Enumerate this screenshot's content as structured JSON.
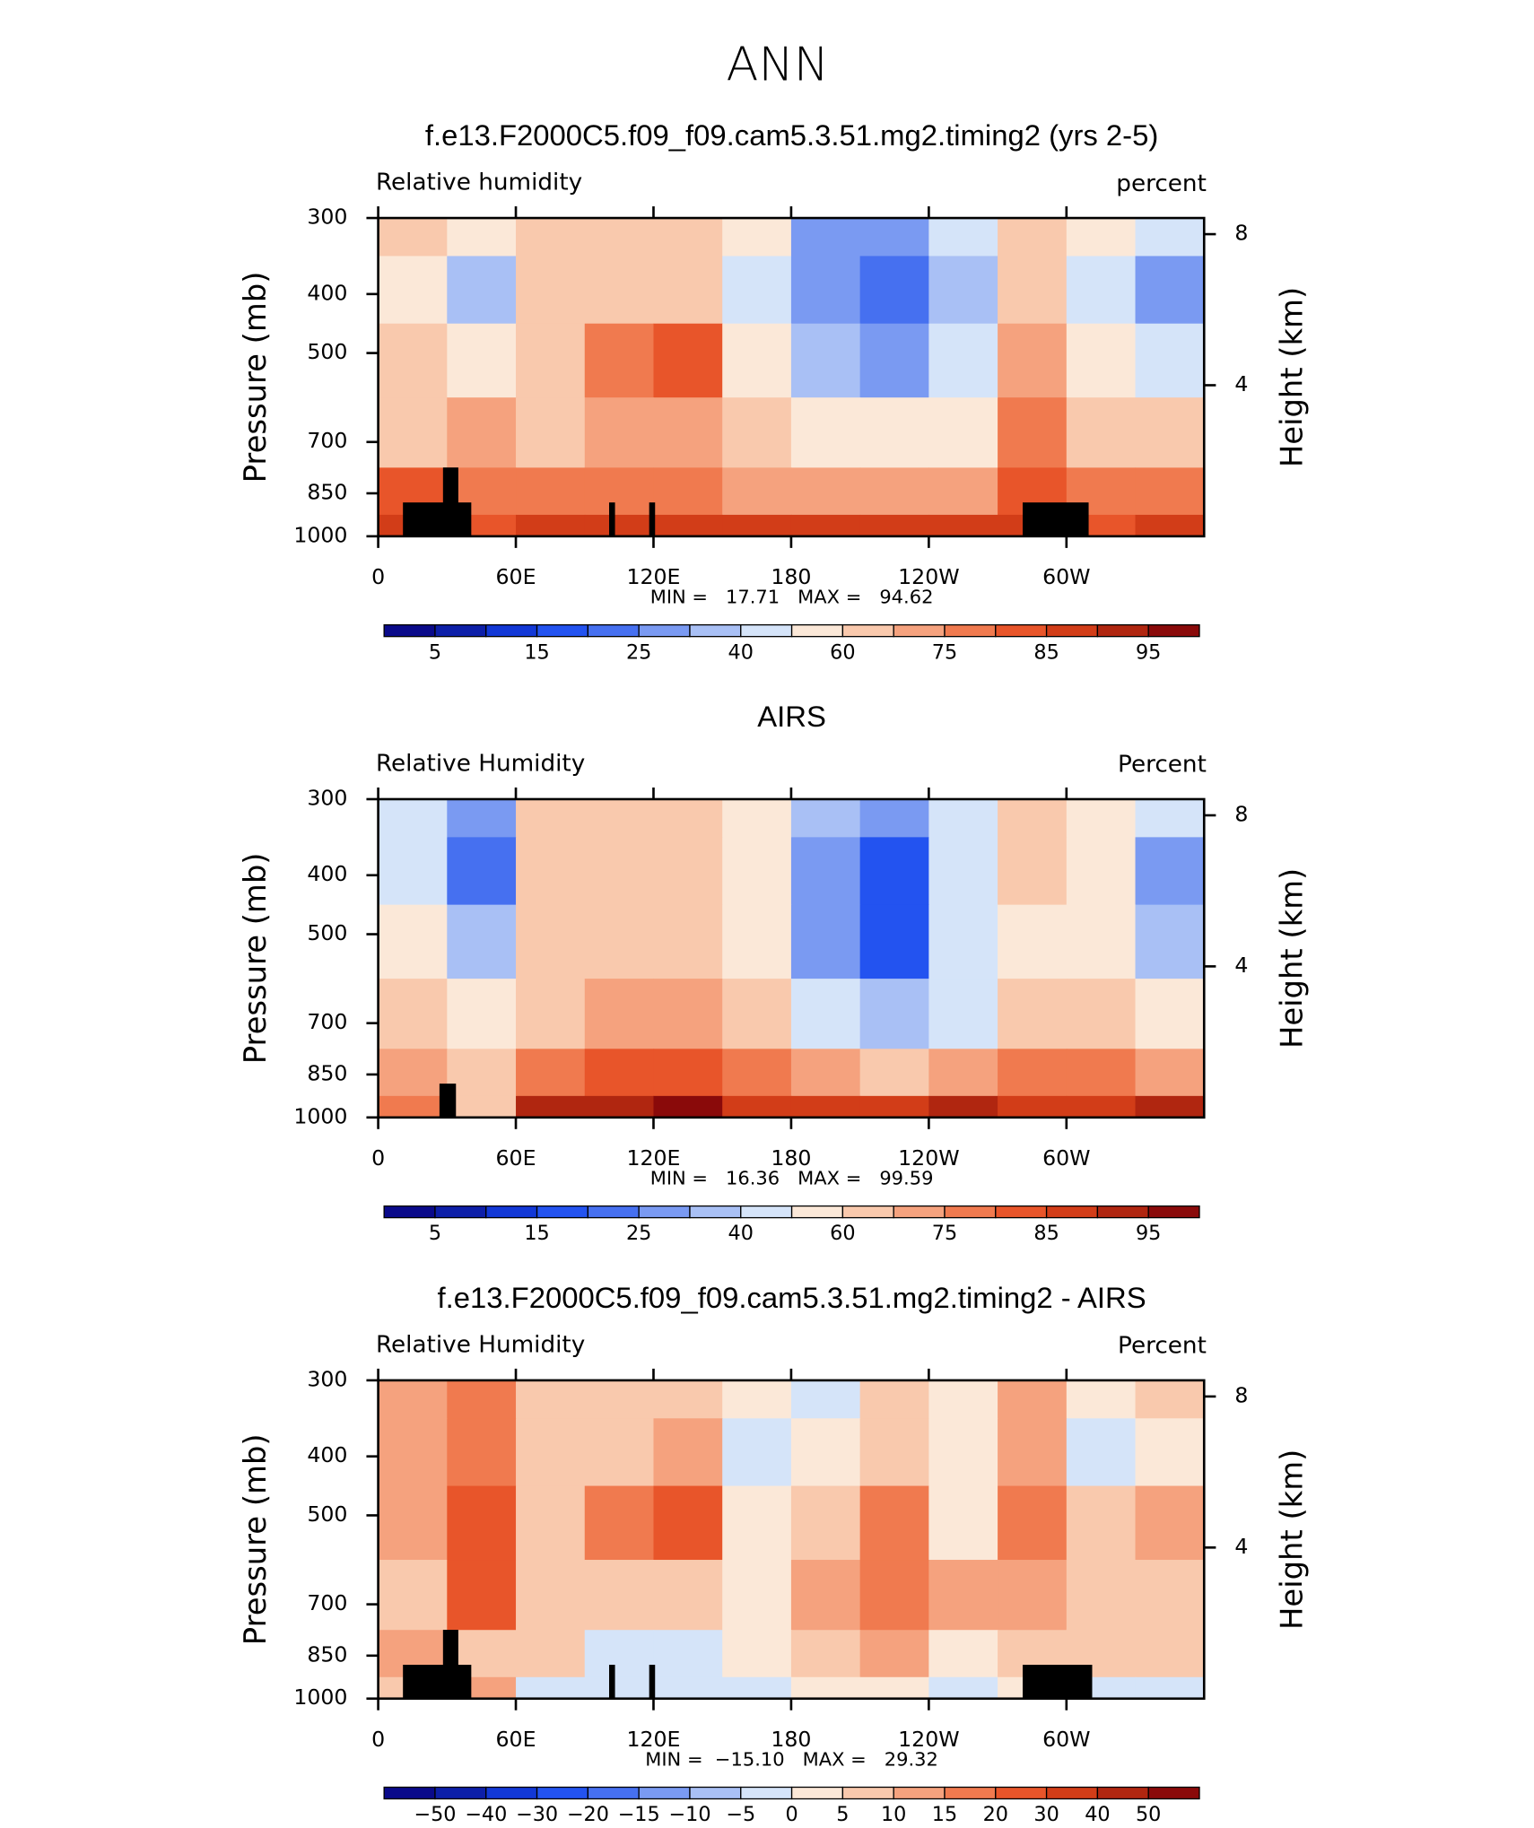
{
  "title": "ANN",
  "chart_data": [
    {
      "type": "contour",
      "title": "f.e13.F2000C5.f09_f09.cam5.3.51.mg2.timing2 (yrs 2-5)",
      "variable": "Relative humidity",
      "units": "percent",
      "stats": "MIN =   17.71   MAX =   94.62",
      "ylabel": "Pressure (mb)",
      "y2label": "Height (km)",
      "yscale": "log",
      "xlim": [
        0,
        360
      ],
      "xticks": [
        0,
        {
          "value": 60,
          "label": "60E"
        },
        {
          "value": 120,
          "label": "120E"
        },
        180,
        {
          "value": 240,
          "label": "120W"
        },
        {
          "value": 300,
          "label": "60W"
        }
      ],
      "ylim": [
        1000,
        300
      ],
      "yticks": [
        300,
        400,
        500,
        700,
        850,
        1000
      ],
      "y2ticks": [
        4,
        8
      ],
      "x": [
        15,
        45,
        75,
        105,
        135,
        165,
        195,
        225,
        255,
        285,
        315,
        345
      ],
      "y": [
        300,
        400,
        500,
        700,
        850,
        1000
      ],
      "z": [
        [
          60,
          50,
          60,
          65,
          62,
          50,
          30,
          30,
          45,
          65,
          50,
          45
        ],
        [
          55,
          35,
          62,
          65,
          65,
          45,
          25,
          20,
          35,
          65,
          45,
          30
        ],
        [
          60,
          55,
          62,
          75,
          80,
          50,
          35,
          32,
          40,
          70,
          55,
          45
        ],
        [
          65,
          70,
          62,
          70,
          70,
          60,
          55,
          50,
          58,
          75,
          62,
          62
        ],
        [
          80,
          75,
          75,
          78,
          75,
          72,
          72,
          72,
          70,
          82,
          75,
          75
        ],
        [
          85,
          80,
          88,
          85,
          85,
          85,
          88,
          88,
          85,
          85,
          82,
          88
        ]
      ],
      "colorbar": {
        "colors": [
          "#0a0a8a",
          "#0d1fa8",
          "#1238d6",
          "#2353f0",
          "#4670f0",
          "#7a9af2",
          "#a9c0f5",
          "#d5e4f9",
          "#fbe8d8",
          "#f9c9ad",
          "#f5a27e",
          "#f07a4f",
          "#e8552a",
          "#d23d18",
          "#b02610",
          "#8a0a0a"
        ],
        "labels": [
          5,
          15,
          25,
          40,
          60,
          75,
          85,
          95
        ]
      }
    },
    {
      "type": "contour",
      "title": "AIRS",
      "variable": "Relative Humidity",
      "units": "Percent",
      "stats": "MIN =   16.36   MAX =   99.59",
      "ylabel": "Pressure (mb)",
      "y2label": "Height (km)",
      "yscale": "log",
      "xlim": [
        0,
        360
      ],
      "xticks": [
        0,
        {
          "value": 60,
          "label": "60E"
        },
        {
          "value": 120,
          "label": "120E"
        },
        180,
        {
          "value": 240,
          "label": "120W"
        },
        {
          "value": 300,
          "label": "60W"
        }
      ],
      "ylim": [
        1000,
        300
      ],
      "yticks": [
        300,
        400,
        500,
        700,
        850,
        1000
      ],
      "y2ticks": [
        4,
        8
      ],
      "x": [
        15,
        45,
        75,
        105,
        135,
        165,
        195,
        225,
        255,
        285,
        315,
        345
      ],
      "y": [
        300,
        400,
        500,
        700,
        850,
        1000
      ],
      "z": [
        [
          45,
          30,
          60,
          65,
          60,
          55,
          35,
          30,
          45,
          60,
          50,
          40
        ],
        [
          45,
          20,
          60,
          65,
          60,
          55,
          25,
          15,
          40,
          60,
          50,
          30
        ],
        [
          50,
          35,
          60,
          62,
          62,
          55,
          30,
          15,
          40,
          55,
          50,
          35
        ],
        [
          60,
          50,
          62,
          70,
          70,
          62,
          45,
          35,
          45,
          65,
          60,
          55
        ],
        [
          70,
          65,
          75,
          80,
          80,
          75,
          72,
          65,
          72,
          78,
          75,
          72
        ],
        [
          75,
          60,
          90,
          92,
          95,
          88,
          85,
          85,
          90,
          85,
          88,
          90
        ]
      ],
      "colorbar": {
        "colors": [
          "#0a0a8a",
          "#0d1fa8",
          "#1238d6",
          "#2353f0",
          "#4670f0",
          "#7a9af2",
          "#a9c0f5",
          "#d5e4f9",
          "#fbe8d8",
          "#f9c9ad",
          "#f5a27e",
          "#f07a4f",
          "#e8552a",
          "#d23d18",
          "#b02610",
          "#8a0a0a"
        ],
        "labels": [
          5,
          15,
          25,
          40,
          60,
          75,
          85,
          95
        ]
      }
    },
    {
      "type": "contour",
      "title": "f.e13.F2000C5.f09_f09.cam5.3.51.mg2.timing2 - AIRS",
      "variable": "Relative Humidity",
      "units": "Percent",
      "stats": "MIN =  −15.10   MAX =   29.32",
      "ylabel": "Pressure (mb)",
      "y2label": "Height (km)",
      "yscale": "log",
      "xlim": [
        0,
        360
      ],
      "xticks": [
        0,
        {
          "value": 60,
          "label": "60E"
        },
        {
          "value": 120,
          "label": "120E"
        },
        180,
        {
          "value": 240,
          "label": "120W"
        },
        {
          "value": 300,
          "label": "60W"
        }
      ],
      "ylim": [
        1000,
        300
      ],
      "yticks": [
        300,
        400,
        500,
        700,
        850,
        1000
      ],
      "y2ticks": [
        4,
        8
      ],
      "x": [
        15,
        45,
        75,
        105,
        135,
        165,
        195,
        225,
        255,
        285,
        315,
        345
      ],
      "y": [
        300,
        400,
        500,
        700,
        850,
        1000
      ],
      "z": [
        [
          10,
          15,
          5,
          5,
          5,
          0,
          -5,
          5,
          0,
          10,
          0,
          5
        ],
        [
          10,
          15,
          5,
          5,
          10,
          -5,
          0,
          5,
          0,
          10,
          -5,
          0
        ],
        [
          10,
          20,
          5,
          15,
          20,
          0,
          5,
          15,
          0,
          15,
          5,
          10
        ],
        [
          5,
          20,
          5,
          5,
          5,
          0,
          10,
          15,
          10,
          10,
          5,
          5
        ],
        [
          10,
          5,
          5,
          -5,
          -5,
          0,
          5,
          10,
          0,
          5,
          5,
          5
        ],
        [
          5,
          10,
          -5,
          -5,
          -5,
          -5,
          0,
          0,
          -5,
          0,
          -5,
          -5
        ]
      ],
      "colorbar": {
        "colors": [
          "#0a0a8a",
          "#0d1fa8",
          "#1238d6",
          "#2353f0",
          "#4670f0",
          "#7a9af2",
          "#a9c0f5",
          "#d5e4f9",
          "#fbe8d8",
          "#f9c9ad",
          "#f5a27e",
          "#f07a4f",
          "#e8552a",
          "#d23d18",
          "#b02610",
          "#8a0a0a"
        ],
        "labels": [
          {
            "value": -50,
            "label": "−50"
          },
          {
            "value": -40,
            "label": "−40"
          },
          {
            "value": -30,
            "label": "−30"
          },
          {
            "value": -20,
            "label": "−20"
          },
          {
            "value": -15,
            "label": "−15"
          },
          {
            "value": -10,
            "label": "−10"
          },
          {
            "value": -5,
            "label": "−5"
          },
          0,
          5,
          10,
          15,
          20,
          30,
          40,
          50
        ]
      }
    }
  ]
}
